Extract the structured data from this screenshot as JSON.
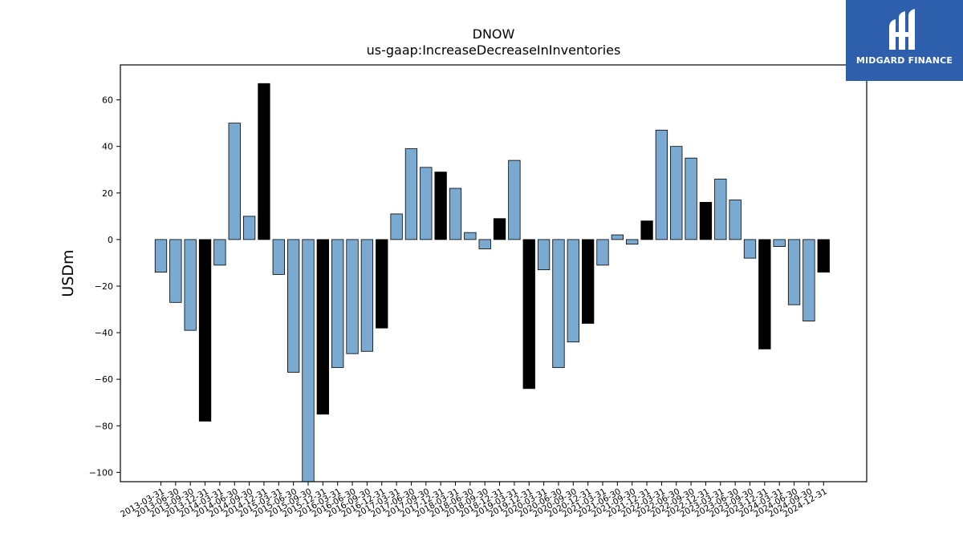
{
  "chart_data": {
    "type": "bar",
    "title": "DNOW",
    "subtitle": "us-gaap:IncreaseDecreaseInInventories",
    "xlabel": "",
    "ylabel": "USDm",
    "ylim": [
      -104,
      75
    ],
    "yticks": [
      60,
      40,
      20,
      0,
      -20,
      -40,
      -60,
      -80,
      -100
    ],
    "grid": false,
    "categories": [
      "2013-03-31",
      "2013-06-30",
      "2013-09-30",
      "2013-12-31",
      "2014-03-31",
      "2014-06-30",
      "2014-09-30",
      "2014-12-31",
      "2015-03-31",
      "2015-06-30",
      "2015-09-30",
      "2015-12-31",
      "2016-03-31",
      "2016-06-30",
      "2016-09-30",
      "2016-12-31",
      "2017-03-31",
      "2017-06-30",
      "2017-09-30",
      "2017-12-31",
      "2018-03-31",
      "2018-06-30",
      "2018-09-30",
      "2018-12-31",
      "2019-03-31",
      "2019-12-31",
      "2020-03-31",
      "2020-06-30",
      "2020-09-30",
      "2020-12-31",
      "2021-03-31",
      "2021-06-30",
      "2021-09-30",
      "2021-12-31",
      "2022-03-31",
      "2022-06-30",
      "2022-09-30",
      "2022-12-31",
      "2023-03-31",
      "2023-06-30",
      "2023-09-30",
      "2023-12-31",
      "2024-03-31",
      "2024-06-30",
      "2024-09-30",
      "2024-12-31"
    ],
    "values": [
      -14,
      -27,
      -39,
      -78,
      -11,
      50,
      10,
      67,
      -15,
      -57,
      -104,
      -75,
      -55,
      -49,
      -48,
      -38,
      11,
      39,
      31,
      29,
      22,
      3,
      -4,
      9,
      34,
      -64,
      -13,
      -55,
      -44,
      -36,
      -11,
      2,
      -2,
      8,
      47,
      40,
      35,
      16,
      26,
      17,
      -8,
      -47,
      -3,
      -28,
      -35,
      -14
    ],
    "highlight": [
      false,
      false,
      false,
      true,
      false,
      false,
      false,
      true,
      false,
      false,
      false,
      true,
      false,
      false,
      false,
      true,
      false,
      false,
      false,
      true,
      false,
      false,
      false,
      true,
      false,
      true,
      false,
      false,
      false,
      true,
      false,
      false,
      false,
      true,
      false,
      false,
      false,
      true,
      false,
      false,
      false,
      true,
      false,
      false,
      false,
      true
    ],
    "colors": {
      "bar": "#7aaad0",
      "highlight": "#000000",
      "edge": "#000000"
    }
  },
  "logo": {
    "text": "MIDGARD FINANCE",
    "background": "#2d5fad"
  }
}
